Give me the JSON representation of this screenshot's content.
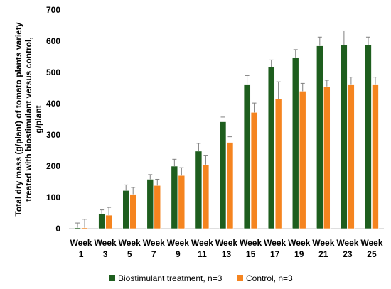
{
  "chart_data": {
    "type": "bar",
    "title": "",
    "xlabel": "",
    "ylabel_lines": [
      "Total dry mass (g/plant) of tomato plants variety",
      "treated with biostimulant versus control,",
      "g/plant"
    ],
    "categories": [
      [
        "Week",
        "1"
      ],
      [
        "Week",
        "3"
      ],
      [
        "Week",
        "5"
      ],
      [
        "Week",
        "7"
      ],
      [
        "Week",
        "9"
      ],
      [
        "Week",
        "11"
      ],
      [
        "Week",
        "13"
      ],
      [
        "Week",
        "15"
      ],
      [
        "Week",
        "17"
      ],
      [
        "Week",
        "19"
      ],
      [
        "Week",
        "21"
      ],
      [
        "Week",
        "23"
      ],
      [
        "Week",
        "25"
      ]
    ],
    "ylim": [
      0,
      700
    ],
    "yticks": [
      "0",
      "100",
      "200",
      "300",
      "400",
      "500",
      "600",
      "700"
    ],
    "grid": false,
    "legend_position": "bottom",
    "error_bars": true,
    "series": [
      {
        "name": "Biostimulant treatment, n=3",
        "color": "#1e5e1e",
        "values": [
          3,
          48,
          122,
          158,
          200,
          248,
          342,
          460,
          518,
          548,
          585,
          588,
          588
        ],
        "errors": [
          15,
          12,
          18,
          15,
          22,
          25,
          15,
          30,
          22,
          25,
          28,
          45,
          25
        ]
      },
      {
        "name": "Control, n=3",
        "color": "#f5841f",
        "values": [
          3,
          43,
          110,
          138,
          170,
          205,
          276,
          372,
          415,
          440,
          455,
          460,
          460
        ],
        "errors": [
          27,
          25,
          22,
          20,
          25,
          30,
          18,
          30,
          55,
          25,
          20,
          25,
          25
        ]
      }
    ]
  }
}
